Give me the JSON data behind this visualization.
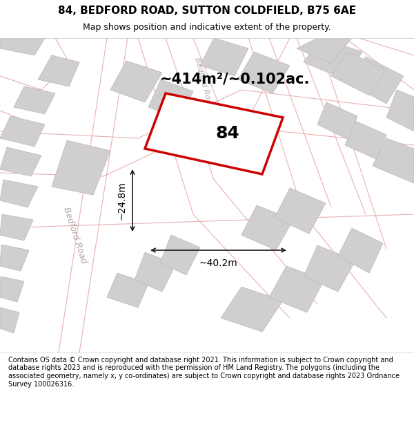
{
  "title": "84, BEDFORD ROAD, SUTTON COLDFIELD, B75 6AE",
  "subtitle": "Map shows position and indicative extent of the property.",
  "footer": "Contains OS data © Crown copyright and database right 2021. This information is subject to Crown copyright and database rights 2023 and is reproduced with the permission of HM Land Registry. The polygons (including the associated geometry, namely x, y co-ordinates) are subject to Crown copyright and database rights 2023 Ordnance Survey 100026316.",
  "area_label": "~414m²/~0.102ac.",
  "width_label": "~40.2m",
  "height_label": "~24.8m",
  "plot_number": "84",
  "bg_color": "#f5f5f5",
  "map_bg": "#f0efef",
  "road_fill": "#e8e4e4",
  "plot_outline_color": "#cc0000",
  "road_label_color": "#b0a8a8",
  "building_fill": "#d0cece",
  "building_outline": "#c0bcbc",
  "road_line_color": "#e8b0b0",
  "dim_line_color": "#1a1a1a",
  "title_fontsize": 11,
  "subtitle_fontsize": 9,
  "footer_fontsize": 7,
  "annotation_fontsize": 14,
  "plot_label_fontsize": 18,
  "dim_label_fontsize": 10
}
